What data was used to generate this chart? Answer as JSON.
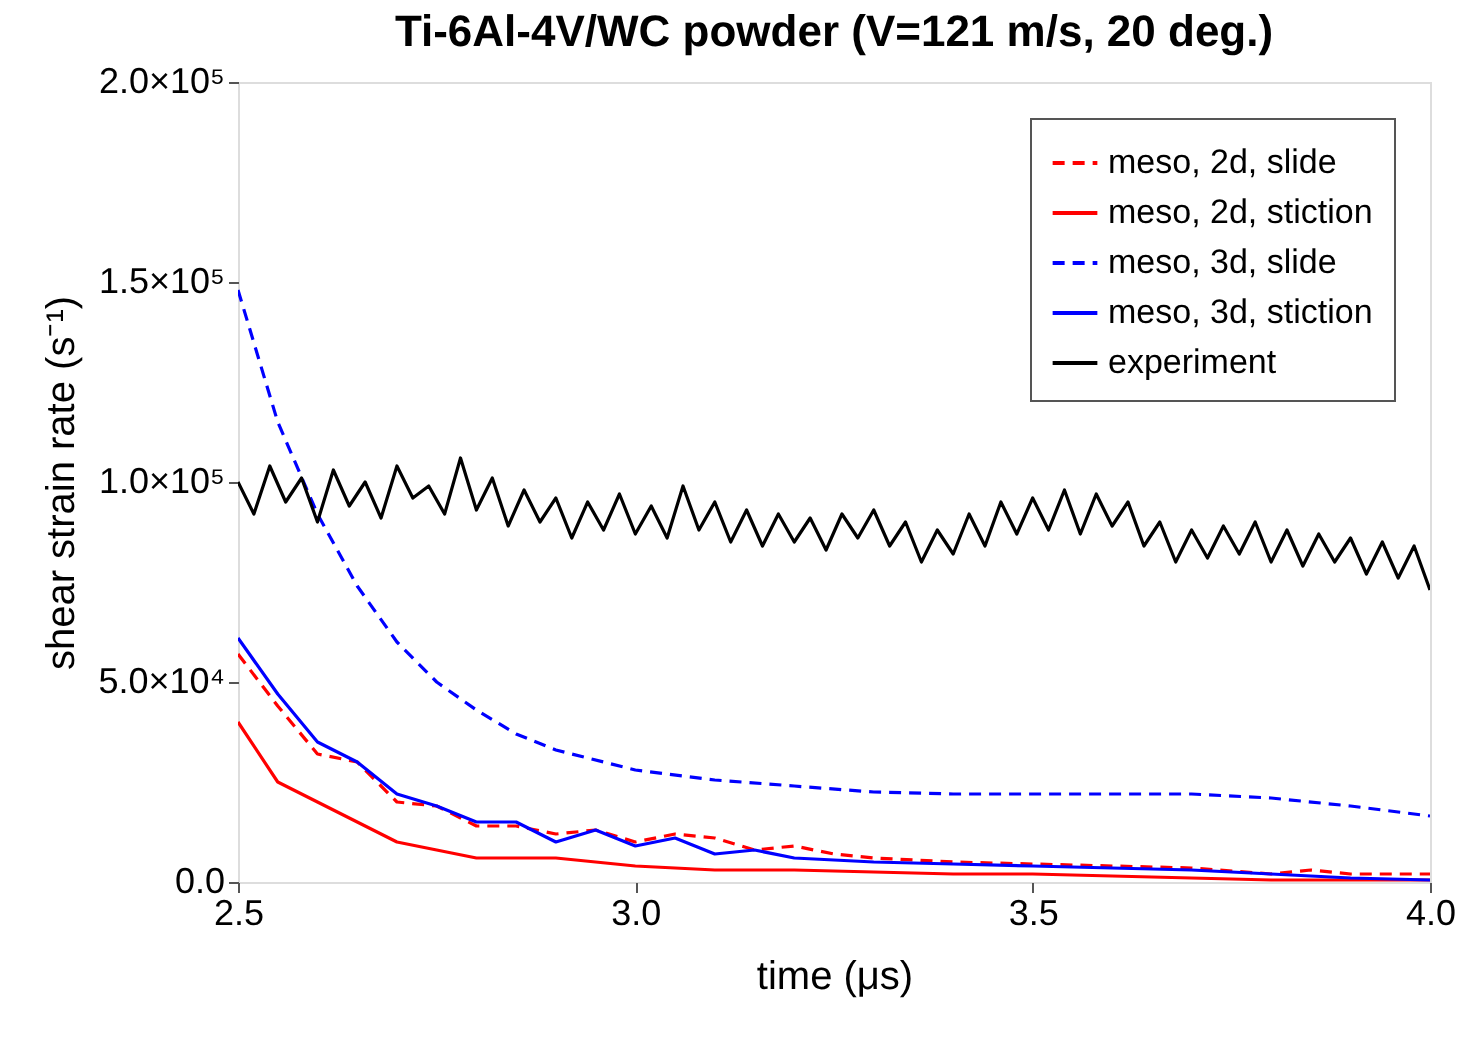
{
  "chart_data": {
    "type": "line",
    "title": "Ti-6Al-4V/WC powder (V=121 m/s, 20 deg.)",
    "xlabel": "time (μs)",
    "ylabel": "shear strain rate (s⁻¹)",
    "xlim": [
      2.5,
      4.0
    ],
    "xticks": [
      {
        "value": 2.5,
        "label": "2.5"
      },
      {
        "value": 3,
        "label": "3.0"
      },
      {
        "value": 3.5,
        "label": "3.5"
      },
      {
        "value": 4,
        "label": "4.0"
      }
    ],
    "ylim": [
      0,
      200000
    ],
    "yticks": [
      {
        "value": 0,
        "label": "0.0"
      },
      {
        "value": 50000,
        "label": "5.0×10⁴"
      },
      {
        "value": 100000,
        "label": "1.0×10⁵"
      },
      {
        "value": 150000,
        "label": "1.5×10⁵"
      },
      {
        "value": 200000,
        "label": "2.0×10⁵"
      }
    ],
    "grid": false,
    "legend": "top right",
    "series": [
      {
        "name": "meso, 2d, slide",
        "color": "#ff0000",
        "line_style": "dashed",
        "x": [
          2.5,
          2.55,
          2.6,
          2.65,
          2.7,
          2.75,
          2.8,
          2.85,
          2.9,
          2.95,
          3.0,
          3.05,
          3.1,
          3.15,
          3.2,
          3.25,
          3.3,
          3.4,
          3.5,
          3.6,
          3.7,
          3.8,
          3.85,
          3.9,
          4.0
        ],
        "values": [
          57000,
          44000,
          32000,
          30000,
          20000,
          19000,
          14000,
          14000,
          12000,
          13000,
          10000,
          12000,
          11000,
          8000,
          9000,
          7000,
          6000,
          5000,
          4500,
          4000,
          3500,
          2000,
          3000,
          2000,
          2000
        ]
      },
      {
        "name": "meso, 2d, stiction",
        "color": "#ff0000",
        "line_style": "solid",
        "x": [
          2.5,
          2.55,
          2.6,
          2.65,
          2.7,
          2.75,
          2.8,
          2.9,
          3.0,
          3.1,
          3.2,
          3.3,
          3.4,
          3.5,
          3.6,
          3.7,
          3.8,
          4.0
        ],
        "values": [
          40000,
          25000,
          20000,
          15000,
          10000,
          8000,
          6000,
          6000,
          4000,
          3000,
          3000,
          2500,
          2000,
          2000,
          1500,
          1000,
          500,
          500
        ]
      },
      {
        "name": "meso, 3d, slide",
        "color": "#0000ff",
        "line_style": "dashed",
        "x": [
          2.5,
          2.55,
          2.6,
          2.65,
          2.7,
          2.75,
          2.8,
          2.85,
          2.9,
          3.0,
          3.1,
          3.2,
          3.3,
          3.4,
          3.5,
          3.6,
          3.7,
          3.8,
          3.9,
          4.0
        ],
        "values": [
          148000,
          115000,
          92000,
          74000,
          60000,
          50000,
          43000,
          37000,
          33000,
          28000,
          25500,
          24000,
          22500,
          22000,
          22000,
          22000,
          22000,
          21000,
          19000,
          16500
        ]
      },
      {
        "name": "meso, 3d, stiction",
        "color": "#0000ff",
        "line_style": "solid",
        "x": [
          2.5,
          2.55,
          2.6,
          2.65,
          2.7,
          2.75,
          2.8,
          2.85,
          2.9,
          2.95,
          3.0,
          3.05,
          3.1,
          3.15,
          3.2,
          3.3,
          3.4,
          3.5,
          3.6,
          3.7,
          3.8,
          3.9,
          4.0
        ],
        "values": [
          61000,
          47000,
          35000,
          30000,
          22000,
          19000,
          15000,
          15000,
          10000,
          13000,
          9000,
          11000,
          7000,
          8000,
          6000,
          5000,
          4500,
          4000,
          3500,
          3000,
          2000,
          1000,
          500
        ]
      },
      {
        "name": "experiment",
        "color": "#000000",
        "line_style": "solid",
        "x": [
          2.5,
          2.52,
          2.54,
          2.56,
          2.58,
          2.6,
          2.62,
          2.64,
          2.66,
          2.68,
          2.7,
          2.72,
          2.74,
          2.76,
          2.78,
          2.8,
          2.82,
          2.84,
          2.86,
          2.88,
          2.9,
          2.92,
          2.94,
          2.96,
          2.98,
          3.0,
          3.02,
          3.04,
          3.06,
          3.08,
          3.1,
          3.12,
          3.14,
          3.16,
          3.18,
          3.2,
          3.22,
          3.24,
          3.26,
          3.28,
          3.3,
          3.32,
          3.34,
          3.36,
          3.38,
          3.4,
          3.42,
          3.44,
          3.46,
          3.48,
          3.5,
          3.52,
          3.54,
          3.56,
          3.58,
          3.6,
          3.62,
          3.64,
          3.66,
          3.68,
          3.7,
          3.72,
          3.74,
          3.76,
          3.78,
          3.8,
          3.82,
          3.84,
          3.86,
          3.88,
          3.9,
          3.92,
          3.94,
          3.96,
          3.98,
          4.0
        ],
        "values": [
          100000,
          92000,
          104000,
          95000,
          101000,
          90000,
          103000,
          94000,
          100000,
          91000,
          104000,
          96000,
          99000,
          92000,
          106000,
          93000,
          101000,
          89000,
          98000,
          90000,
          96000,
          86000,
          95000,
          88000,
          97000,
          87000,
          94000,
          86000,
          99000,
          88000,
          95000,
          85000,
          93000,
          84000,
          92000,
          85000,
          91000,
          83000,
          92000,
          86000,
          93000,
          84000,
          90000,
          80000,
          88000,
          82000,
          92000,
          84000,
          95000,
          87000,
          96000,
          88000,
          98000,
          87000,
          97000,
          89000,
          95000,
          84000,
          90000,
          80000,
          88000,
          81000,
          89000,
          82000,
          90000,
          80000,
          88000,
          79000,
          87000,
          80000,
          86000,
          77000,
          85000,
          76000,
          84000,
          73000
        ]
      }
    ]
  }
}
